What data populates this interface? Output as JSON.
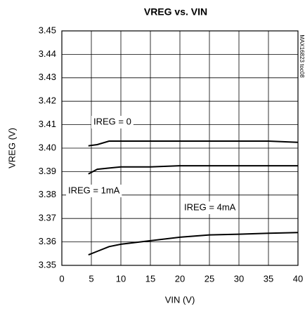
{
  "chart_data": {
    "type": "line",
    "title": "VREG vs. VIN",
    "x_label": "VIN (V)",
    "y_label": "VREG (V)",
    "annotation": "MAX16823 toc08",
    "x": [
      4.5,
      6,
      8,
      10,
      15,
      20,
      25,
      30,
      35,
      40
    ],
    "series": [
      {
        "name": "IREG = 0",
        "color": "#000000",
        "values": [
          3.401,
          3.4015,
          3.403,
          3.403,
          3.403,
          3.403,
          3.403,
          3.403,
          3.403,
          3.4025
        ]
      },
      {
        "name": "IREG = 1mA",
        "color": "#000000",
        "values": [
          3.389,
          3.391,
          3.3915,
          3.392,
          3.392,
          3.3925,
          3.3925,
          3.3925,
          3.3925,
          3.3925
        ]
      },
      {
        "name": "IREG = 4mA",
        "color": "#000000",
        "values": [
          3.3545,
          3.356,
          3.358,
          3.359,
          3.3605,
          3.362,
          3.363,
          3.3633,
          3.3637,
          3.364
        ]
      }
    ],
    "xlim": [
      0,
      40
    ],
    "xticks": [
      0,
      5,
      10,
      15,
      20,
      25,
      30,
      35,
      40
    ],
    "ylim": [
      3.35,
      3.45
    ],
    "yticks": [
      3.35,
      3.36,
      3.37,
      3.38,
      3.39,
      {
        "value": 3.4,
        "label": "3.40"
      },
      3.41,
      3.42,
      3.43,
      3.44,
      3.45
    ],
    "grid": true
  }
}
